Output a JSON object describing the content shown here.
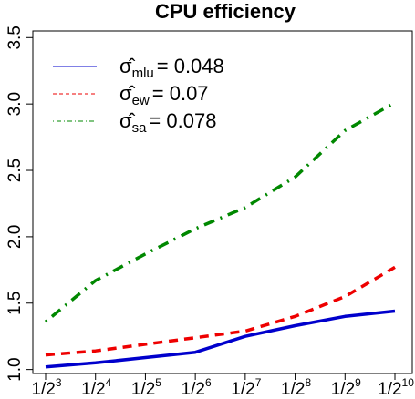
{
  "chart_data": {
    "type": "line",
    "title": "CPU efficiency",
    "xlabel": "",
    "ylabel": "",
    "x": [
      "1/2^3",
      "1/2^4",
      "1/2^5",
      "1/2^6",
      "1/2^7",
      "1/2^8",
      "1/2^9",
      "1/2^10"
    ],
    "x_tick_labels": [
      {
        "base": "1/2",
        "exp": "3"
      },
      {
        "base": "1/2",
        "exp": "4"
      },
      {
        "base": "1/2",
        "exp": "5"
      },
      {
        "base": "1/2",
        "exp": "6"
      },
      {
        "base": "1/2",
        "exp": "7"
      },
      {
        "base": "1/2",
        "exp": "8"
      },
      {
        "base": "1/2",
        "exp": "9"
      },
      {
        "base": "1/2",
        "exp": "10"
      }
    ],
    "ylim": [
      0.97,
      3.55
    ],
    "y_ticks": [
      "1.0",
      "1.5",
      "2.0",
      "2.5",
      "3.0",
      "3.5"
    ],
    "grid": false,
    "legend_position": "top-left",
    "series": [
      {
        "name": "σ̂_mlu = 0.048",
        "legend_symbol": "σ",
        "legend_sub": "mlu",
        "legend_value": "= 0.048",
        "color": "#0000cc",
        "dash": "solid",
        "values": [
          1.02,
          1.05,
          1.09,
          1.13,
          1.25,
          1.33,
          1.4,
          1.44
        ]
      },
      {
        "name": "σ̂_ew = 0.07",
        "legend_symbol": "σ",
        "legend_sub": "ew",
        "legend_value": "= 0.07",
        "color": "#ee0000",
        "dash": "dashed",
        "values": [
          1.11,
          1.14,
          1.19,
          1.24,
          1.29,
          1.4,
          1.55,
          1.77
        ]
      },
      {
        "name": "σ̂_sa = 0.078",
        "legend_symbol": "σ",
        "legend_sub": "sa",
        "legend_value": "= 0.078",
        "color": "#008800",
        "dash": "dotdash",
        "values": [
          1.36,
          1.67,
          1.87,
          2.06,
          2.22,
          2.45,
          2.8,
          3.01
        ]
      }
    ]
  }
}
